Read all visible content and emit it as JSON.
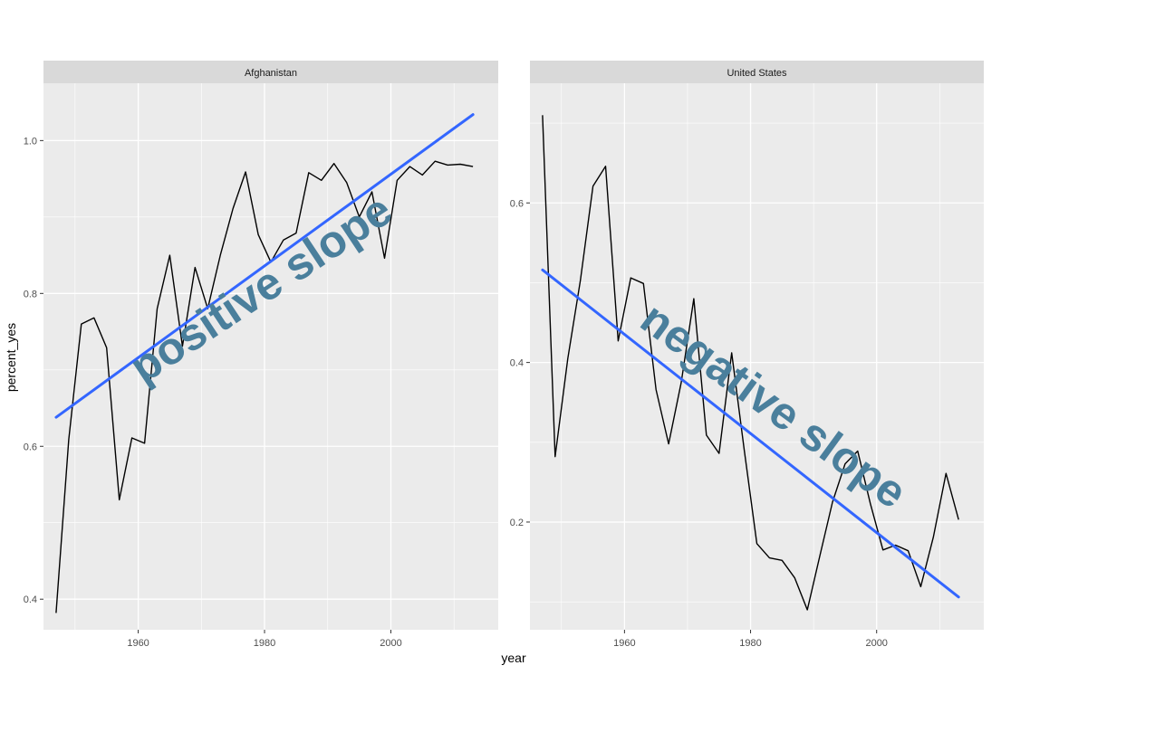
{
  "chart_data": {
    "type": "line",
    "xlabel": "year",
    "ylabel": "percent_yes",
    "facets": [
      {
        "name": "Afghanistan",
        "xlim": [
          1945,
          2017
        ],
        "ylim": [
          0.36,
          1.075
        ],
        "x_ticks": [
          1960,
          1980,
          2000
        ],
        "y_ticks": [
          0.4,
          0.6,
          0.8,
          1.0
        ],
        "y_tick_labels": [
          "0.4",
          "0.6",
          "0.8",
          "1.0"
        ],
        "x": [
          1947,
          1949,
          1951,
          1953,
          1955,
          1957,
          1959,
          1961,
          1963,
          1965,
          1967,
          1969,
          1971,
          1973,
          1975,
          1977,
          1979,
          1981,
          1983,
          1985,
          1987,
          1989,
          1991,
          1993,
          1995,
          1997,
          1999,
          2001,
          2003,
          2005,
          2007,
          2009,
          2011,
          2013
        ],
        "y": [
          0.382,
          0.609,
          0.76,
          0.768,
          0.729,
          0.53,
          0.611,
          0.604,
          0.78,
          0.85,
          0.731,
          0.834,
          0.78,
          0.85,
          0.911,
          0.959,
          0.877,
          0.841,
          0.87,
          0.879,
          0.958,
          0.948,
          0.97,
          0.945,
          0.9,
          0.933,
          0.846,
          0.948,
          0.966,
          0.955,
          0.973,
          0.968,
          0.969,
          0.966
        ],
        "trend": {
          "x": [
            1947,
            2013
          ],
          "y": [
            0.638,
            1.034
          ]
        },
        "annotation": "positive slope"
      },
      {
        "name": "United States",
        "xlim": [
          1945,
          2017
        ],
        "ylim": [
          0.065,
          0.75
        ],
        "x_ticks": [
          1960,
          1980,
          2000
        ],
        "y_ticks": [
          0.2,
          0.4,
          0.6
        ],
        "y_tick_labels": [
          "0.2",
          "0.4",
          "0.6"
        ],
        "x": [
          1947,
          1949,
          1951,
          1953,
          1955,
          1957,
          1959,
          1961,
          1963,
          1965,
          1967,
          1969,
          1971,
          1973,
          1975,
          1977,
          1979,
          1981,
          1983,
          1985,
          1987,
          1989,
          1991,
          1993,
          1995,
          1997,
          1999,
          2001,
          2003,
          2005,
          2007,
          2009,
          2011,
          2013
        ],
        "y": [
          0.71,
          0.282,
          0.405,
          0.503,
          0.621,
          0.646,
          0.427,
          0.506,
          0.499,
          0.366,
          0.298,
          0.375,
          0.48,
          0.309,
          0.286,
          0.412,
          0.29,
          0.173,
          0.155,
          0.152,
          0.13,
          0.09,
          0.158,
          0.225,
          0.273,
          0.289,
          0.223,
          0.165,
          0.171,
          0.164,
          0.119,
          0.181,
          0.261,
          0.203
        ],
        "trend": {
          "x": [
            1947,
            2013
          ],
          "y": [
            0.516,
            0.106
          ]
        },
        "annotation": "negative slope"
      }
    ],
    "colors": {
      "line": "#000000",
      "trend": "#3366ff",
      "panel": "#ebebeb",
      "strip": "#d9d9d9",
      "grid_major": "#ffffff",
      "annotation": "#4a7f9c"
    },
    "grid": true
  }
}
